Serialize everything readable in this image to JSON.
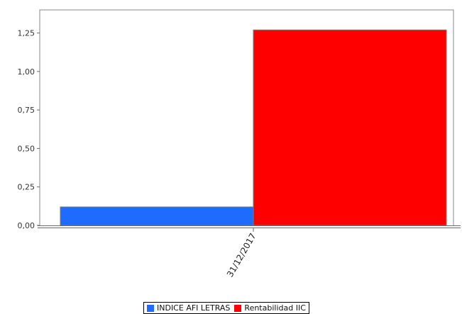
{
  "chart_data": {
    "type": "bar",
    "categories": [
      "31/12/2017"
    ],
    "series": [
      {
        "name": "INDICE AFI LETRAS",
        "values": [
          0.12
        ],
        "color": "#1f6bff"
      },
      {
        "name": "Rentabilidad IIC",
        "values": [
          1.27
        ],
        "color": "#ff0000"
      }
    ],
    "ylim": [
      0,
      1.4
    ],
    "yticks": [
      "0,00",
      "0,25",
      "0,50",
      "0,75",
      "1,00",
      "1,25"
    ],
    "ytick_values": [
      0,
      0.25,
      0.5,
      0.75,
      1.0,
      1.25
    ],
    "grid": false,
    "legend_position": "bottom"
  },
  "legend": {
    "items": [
      {
        "label": "INDICE AFI LETRAS",
        "color": "#1f6bff"
      },
      {
        "label": "Rentabilidad IIC",
        "color": "#ff0000"
      }
    ]
  }
}
